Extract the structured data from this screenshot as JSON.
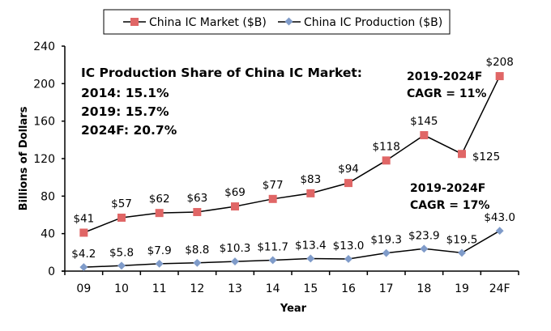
{
  "chart_data": {
    "type": "line",
    "title": "",
    "xlabel": "Year",
    "ylabel": "Billions of Dollars",
    "categories": [
      "09",
      "10",
      "11",
      "12",
      "13",
      "14",
      "15",
      "16",
      "17",
      "18",
      "19",
      "24F"
    ],
    "ylim": [
      0,
      240
    ],
    "yticks": [
      0,
      40,
      80,
      120,
      160,
      200,
      240
    ],
    "grid": false,
    "legend_position": "top",
    "series": [
      {
        "name": "China IC Market ($B)",
        "color": "#e06666",
        "marker": "square",
        "values": [
          41,
          57,
          62,
          63,
          69,
          77,
          83,
          94,
          118,
          145,
          125,
          208
        ],
        "labels": [
          "$41",
          "$57",
          "$62",
          "$63",
          "$69",
          "$77",
          "$83",
          "$94",
          "$118",
          "$145",
          "$125",
          "$208"
        ]
      },
      {
        "name": "China IC Production ($B)",
        "color": "#7f9bc9",
        "marker": "diamond",
        "values": [
          4.2,
          5.8,
          7.9,
          8.8,
          10.3,
          11.7,
          13.4,
          13.0,
          19.3,
          23.9,
          19.5,
          43.0
        ],
        "labels": [
          "$4.2",
          "$5.8",
          "$7.9",
          "$8.8",
          "$10.3",
          "$11.7",
          "$13.4",
          "$13.0",
          "$19.3",
          "$23.9",
          "$19.5",
          "$43.0"
        ]
      }
    ],
    "annotations": {
      "share_box": [
        "IC Production Share of China IC Market:",
        "2014: 15.1%",
        "2019: 15.7%",
        "2024F: 20.7%"
      ],
      "market_cagr": [
        "2019-2024F",
        "CAGR = 11%"
      ],
      "production_cagr": [
        "2019-2024F",
        "CAGR = 17%"
      ]
    }
  }
}
